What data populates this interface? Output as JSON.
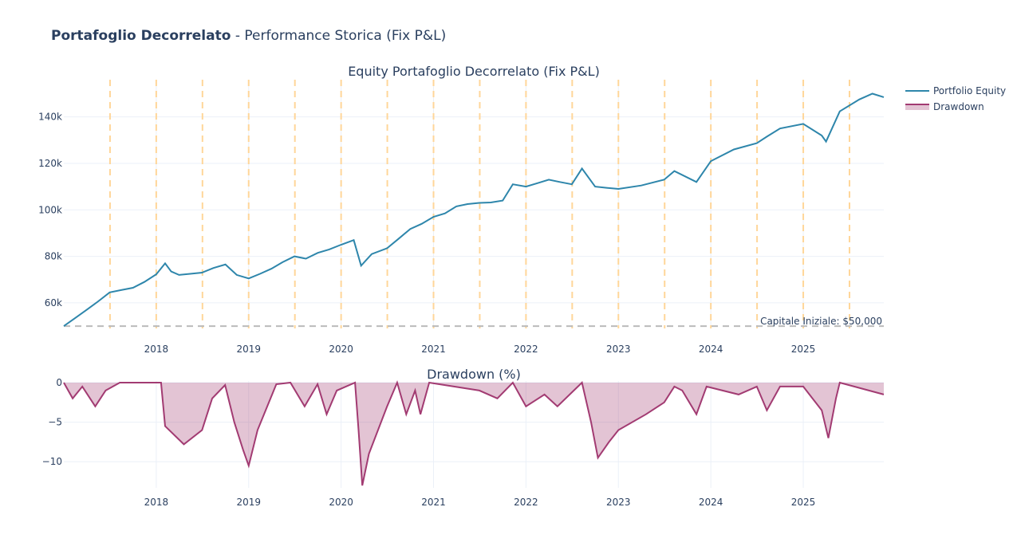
{
  "title_bold": "Portafoglio Decorrelato",
  "title_rest": " - Performance Storica (Fix P&L)",
  "chart_data": [
    {
      "type": "line",
      "title": "Equity Portafoglio Decorrelato (Fix P&L)",
      "x_range": [
        "2017-01-01",
        "2025-11-15"
      ],
      "ylim": [
        49000,
        156000
      ],
      "yticks": [
        60000,
        80000,
        100000,
        120000,
        140000
      ],
      "ytick_labels": [
        "60k",
        "80k",
        "100k",
        "120k",
        "140k"
      ],
      "xtick_labels": [
        "2018",
        "2019",
        "2020",
        "2021",
        "2022",
        "2023",
        "2024",
        "2025"
      ],
      "grid": true,
      "legend": "top-right",
      "colors": {
        "equity": "#2e86ab",
        "initial_line": "#bbbbbb",
        "half_year_lines": "#ffd699"
      },
      "series": [
        {
          "name": "Portfolio Equity",
          "x": [
            "2017-01-01",
            "2017-02-15",
            "2017-04-01",
            "2017-05-15",
            "2017-07-01",
            "2017-08-15",
            "2017-10-01",
            "2017-11-15",
            "2018-01-01",
            "2018-02-05",
            "2018-03-01",
            "2018-04-01",
            "2018-05-15",
            "2018-07-01",
            "2018-08-15",
            "2018-10-01",
            "2018-11-15",
            "2019-01-01",
            "2019-02-15",
            "2019-04-01",
            "2019-05-15",
            "2019-07-01",
            "2019-08-15",
            "2019-10-01",
            "2019-11-15",
            "2020-01-01",
            "2020-02-20",
            "2020-03-20",
            "2020-05-01",
            "2020-07-01",
            "2020-08-15",
            "2020-10-01",
            "2020-11-15",
            "2021-01-01",
            "2021-02-15",
            "2021-04-01",
            "2021-05-15",
            "2021-07-01",
            "2021-08-15",
            "2021-10-01",
            "2021-11-10",
            "2022-01-01",
            "2022-02-15",
            "2022-04-01",
            "2022-05-15",
            "2022-07-01",
            "2022-08-10",
            "2022-10-01",
            "2022-11-15",
            "2023-01-01",
            "2023-04-01",
            "2023-07-01",
            "2023-08-10",
            "2023-11-05",
            "2024-01-01",
            "2024-04-01",
            "2024-07-01",
            "2024-08-10",
            "2024-10-01",
            "2025-01-01",
            "2025-03-15",
            "2025-04-01",
            "2025-05-25",
            "2025-08-10",
            "2025-10-01",
            "2025-11-15"
          ],
          "y": [
            50000,
            53500,
            57000,
            60500,
            64500,
            65500,
            66500,
            69000,
            72300,
            77000,
            73500,
            72000,
            72500,
            73000,
            75000,
            76500,
            72000,
            70500,
            72500,
            74700,
            77500,
            80000,
            79000,
            81500,
            83000,
            85000,
            87000,
            76000,
            81000,
            83500,
            87500,
            91800,
            94000,
            97000,
            98500,
            101500,
            102500,
            103000,
            103200,
            104000,
            111000,
            110000,
            111500,
            113000,
            112000,
            111000,
            117800,
            110000,
            109500,
            109000,
            110500,
            113000,
            116700,
            112000,
            121000,
            126000,
            128700,
            131500,
            135000,
            137000,
            132000,
            129400,
            142400,
            147500,
            150000,
            148500
          ]
        }
      ]
    },
    {
      "type": "area",
      "title": "Drawdown (%)",
      "x_range": [
        "2017-01-01",
        "2025-11-15"
      ],
      "ylim": [
        -13.3,
        0.2
      ],
      "yticks": [
        -10,
        -5,
        0
      ],
      "ytick_labels": [
        "−10",
        "−5",
        "0"
      ],
      "xtick_labels": [
        "2018",
        "2019",
        "2020",
        "2021",
        "2022",
        "2023",
        "2024",
        "2025"
      ],
      "grid": true,
      "colors": {
        "line": "#a23b72",
        "fill": "rgba(162,59,114,0.3)"
      },
      "series": [
        {
          "name": "Drawdown",
          "x": [
            "2017-01-01",
            "2017-02-05",
            "2017-03-15",
            "2017-05-05",
            "2017-06-15",
            "2017-08-10",
            "2018-01-20",
            "2018-02-05",
            "2018-04-20",
            "2018-07-01",
            "2018-08-10",
            "2018-09-30",
            "2018-11-05",
            "2018-12-10",
            "2019-01-01",
            "2019-02-05",
            "2019-04-20",
            "2019-06-15",
            "2019-08-10",
            "2019-09-30",
            "2019-11-05",
            "2019-12-15",
            "2020-02-25",
            "2020-03-10",
            "2020-03-25",
            "2020-04-20",
            "2020-07-01",
            "2020-08-10",
            "2020-09-15",
            "2020-10-20",
            "2020-11-10",
            "2020-12-15",
            "2021-07-01",
            "2021-09-10",
            "2021-11-10",
            "2022-01-01",
            "2022-03-15",
            "2022-05-05",
            "2022-08-10",
            "2022-09-15",
            "2022-10-12",
            "2022-11-25",
            "2023-01-01",
            "2023-04-20",
            "2023-07-01",
            "2023-08-10",
            "2023-09-10",
            "2023-11-05",
            "2023-12-15",
            "2024-04-20",
            "2024-07-01",
            "2024-08-10",
            "2024-10-01",
            "2025-01-01",
            "2025-03-15",
            "2025-04-10",
            "2025-05-10",
            "2025-05-25",
            "2025-11-15"
          ],
          "y": [
            0,
            -2,
            -0.5,
            -3,
            -1,
            0,
            0,
            -5.5,
            -7.8,
            -6,
            -2,
            -0.3,
            -5,
            -8.5,
            -10.5,
            -6,
            -0.2,
            0,
            -3,
            -0.2,
            -4,
            -1,
            0,
            -6,
            -13,
            -9,
            -3,
            0,
            -4,
            -1,
            -4,
            0,
            -1,
            -2,
            0,
            -3,
            -1.5,
            -3,
            0,
            -5,
            -9.5,
            -7.5,
            -6,
            -4,
            -2.5,
            -0.5,
            -1,
            -4,
            -0.5,
            -1.5,
            -0.5,
            -3.5,
            -0.5,
            -0.5,
            -3.5,
            -7,
            -2,
            0,
            -1.5
          ]
        }
      ]
    }
  ],
  "annotation": "Capitale Iniziale: $50,000",
  "legend": {
    "items": [
      "Portfolio Equity",
      "Drawdown"
    ]
  }
}
